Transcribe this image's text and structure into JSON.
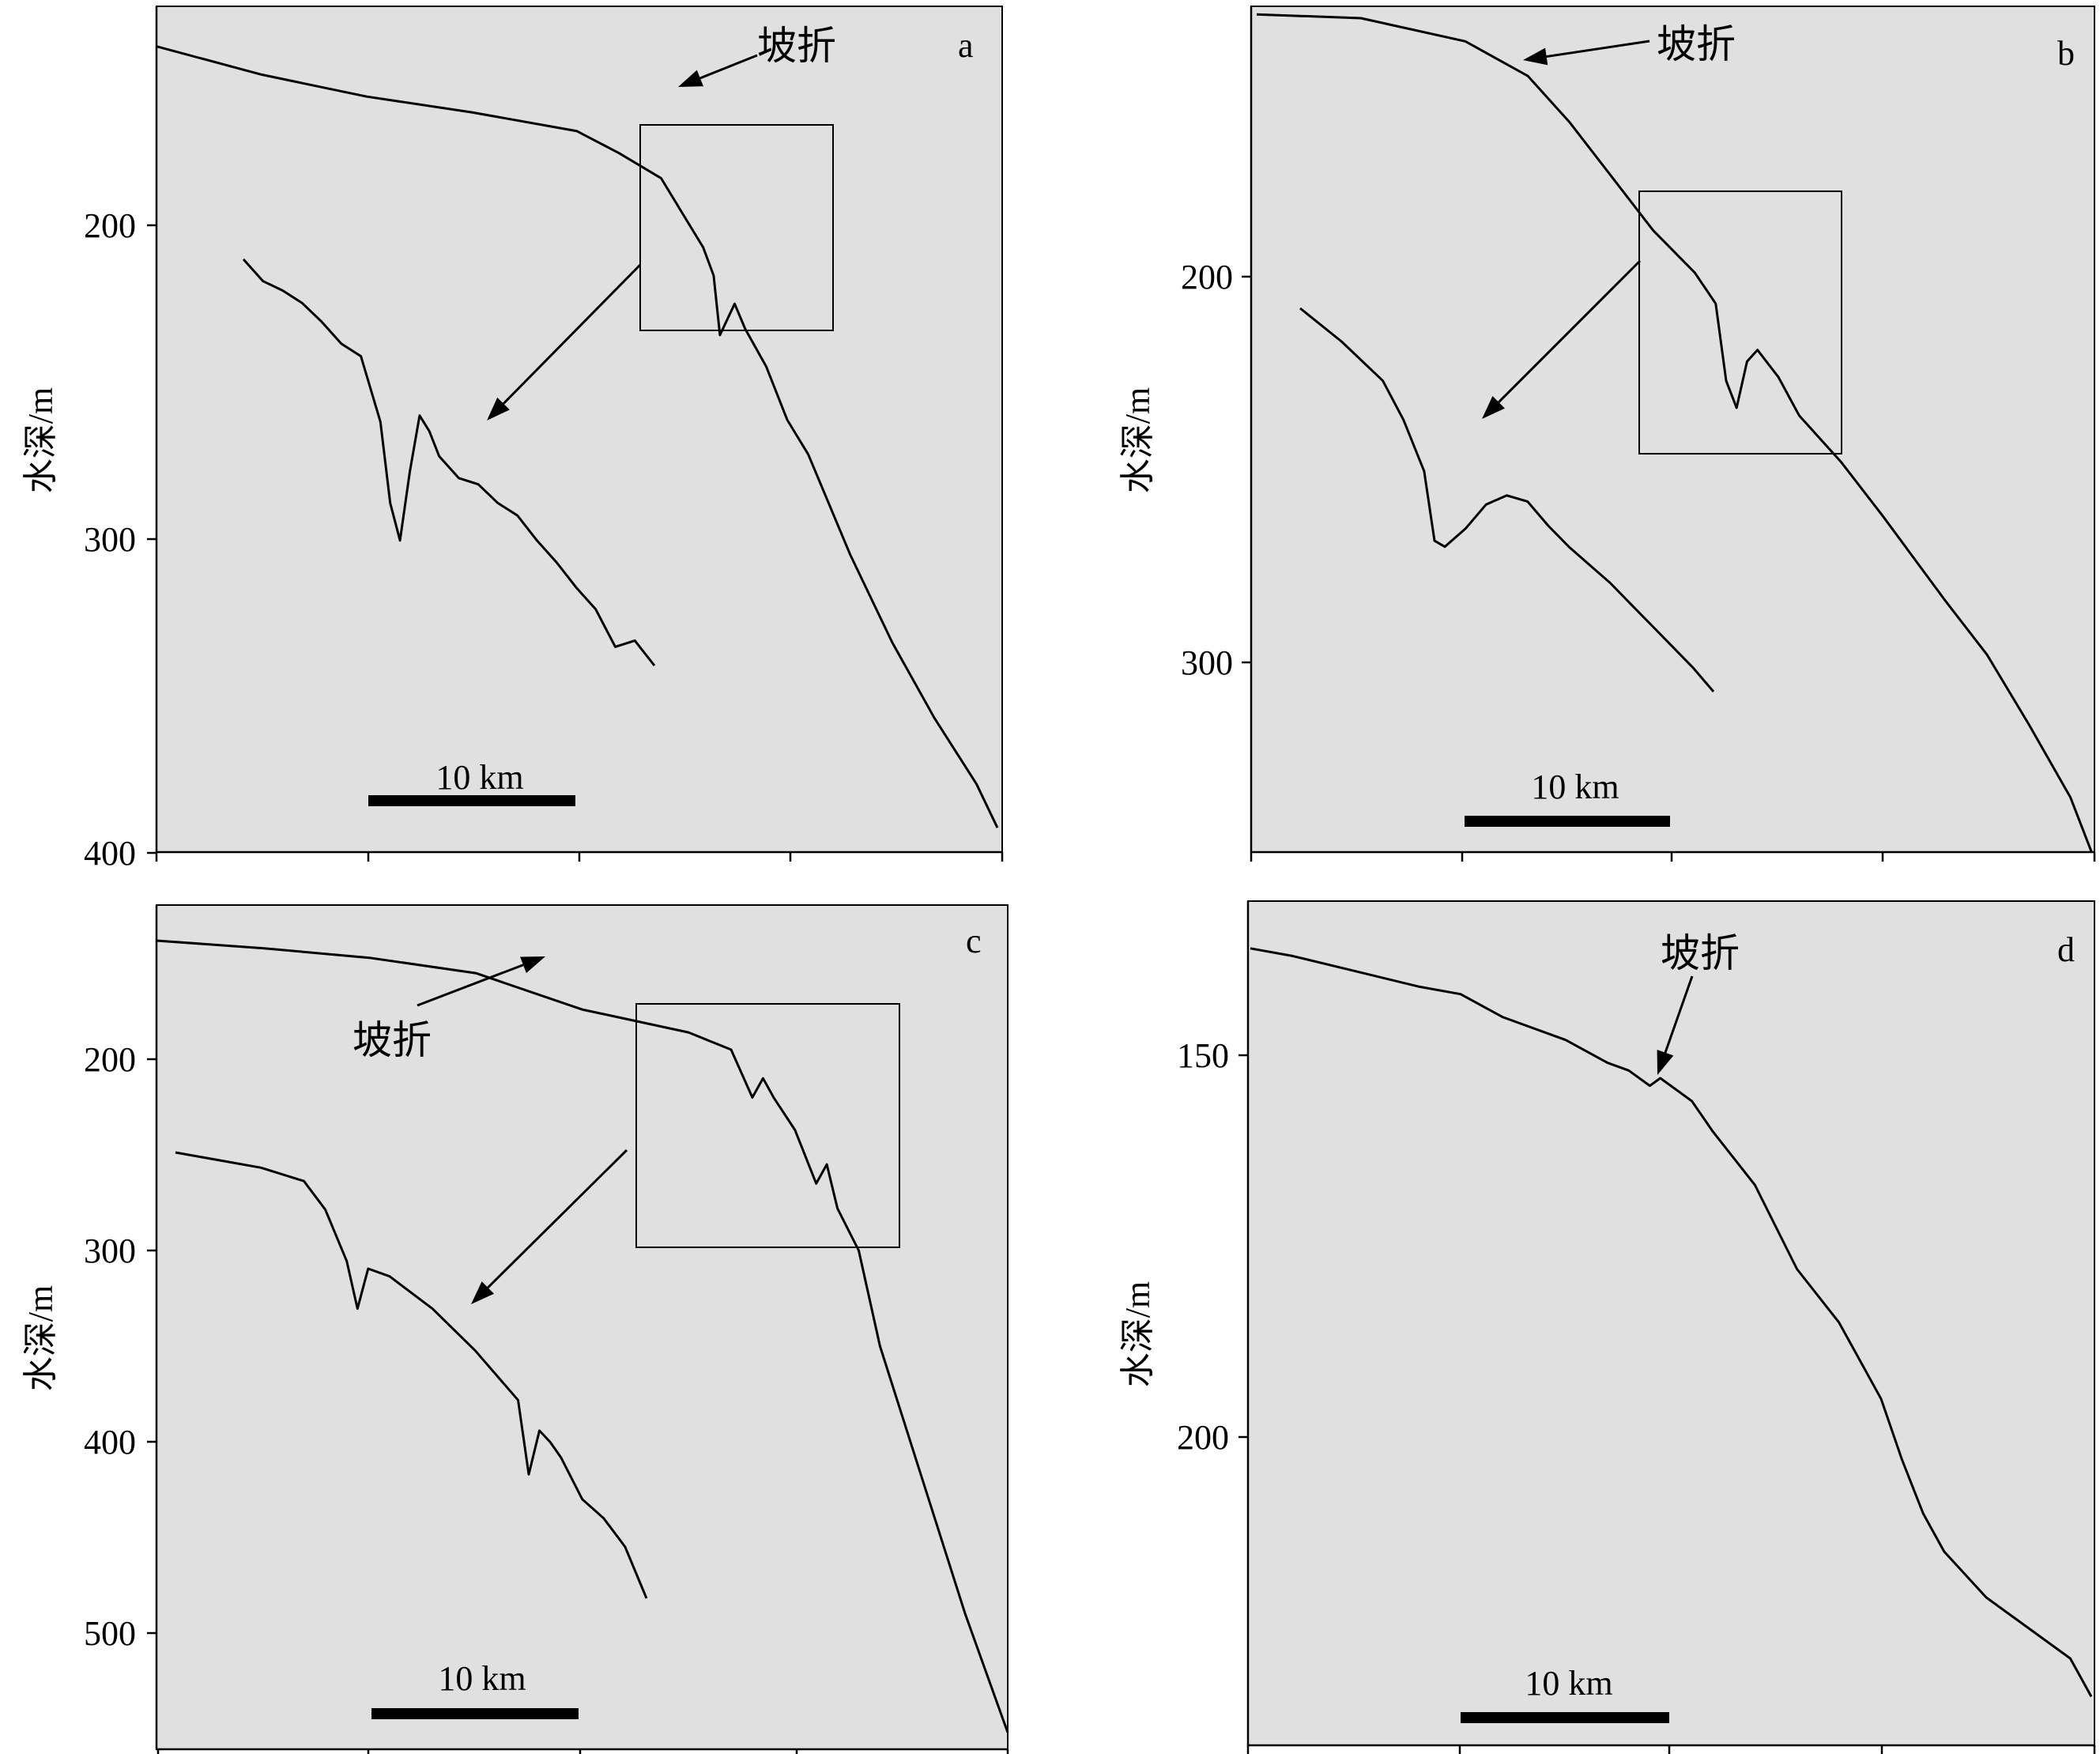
{
  "chart_data": [
    {
      "panel": "a",
      "type": "line",
      "ylabel": "水深/m",
      "yticks": [
        "200",
        "300",
        "400"
      ],
      "ylim": [
        400,
        143
      ],
      "y_inverted": true,
      "scale_bar": "10 km",
      "annotation": "坡折",
      "series": [
        {
          "x": [
            0,
            5,
            10,
            15,
            20,
            22,
            24,
            25,
            26,
            26.5,
            26.8,
            27.5,
            28,
            29,
            30,
            31,
            33,
            35,
            37,
            39,
            40
          ],
          "y": [
            143,
            152,
            159,
            164,
            170,
            177,
            185,
            196,
            207,
            216,
            235,
            225,
            233,
            245,
            262,
            273,
            305,
            333,
            357,
            378,
            392
          ]
        }
      ],
      "inset_series": [
        {
          "x": [
            0,
            1,
            2,
            3,
            4,
            5,
            6,
            7,
            7.5,
            8,
            8.5,
            9,
            9.5,
            10,
            11,
            12,
            13,
            14,
            15,
            16,
            17,
            18,
            19,
            20,
            21
          ],
          "y": [
            210,
            217,
            220,
            224,
            230,
            237,
            241,
            262,
            288,
            300,
            278,
            260,
            265,
            273,
            280,
            282,
            288,
            292,
            300,
            307,
            315,
            322,
            334,
            332,
            340
          ]
        }
      ]
    },
    {
      "panel": "b",
      "type": "line",
      "ylabel": "水深/m",
      "yticks": [
        "200",
        "300"
      ],
      "ylim": [
        349,
        127
      ],
      "y_inverted": true,
      "scale_bar": "10 km",
      "annotation": "坡折",
      "series": [
        {
          "x": [
            0,
            5,
            10,
            13,
            15,
            17,
            19,
            21,
            22,
            22.5,
            23,
            23.5,
            24,
            25,
            26,
            28,
            30,
            33,
            35,
            37,
            39,
            40
          ],
          "y": [
            132,
            133,
            139,
            148,
            160,
            174,
            188,
            199,
            207,
            227,
            234,
            222,
            219,
            226,
            236,
            248,
            262,
            284,
            298,
            316,
            335,
            349
          ]
        }
      ],
      "inset_series": [
        {
          "x": [
            0,
            2,
            4,
            5,
            6,
            6.5,
            7,
            8,
            9,
            10,
            11,
            12,
            13,
            14,
            15,
            16,
            17,
            18,
            19,
            20
          ],
          "y": [
            208,
            219,
            232,
            245,
            262,
            285,
            287,
            281,
            273,
            270,
            272,
            280,
            287,
            293,
            299,
            306,
            313,
            320,
            327,
            335
          ]
        }
      ]
    },
    {
      "panel": "c",
      "type": "line",
      "ylabel": "水深/m",
      "yticks": [
        "200",
        "300",
        "400",
        "500"
      ],
      "ylim": [
        549,
        135
      ],
      "y_inverted": true,
      "scale_bar": "10 km",
      "annotation": "坡折",
      "series": [
        {
          "x": [
            0,
            5,
            10,
            15,
            20,
            25,
            27,
            28,
            28.5,
            29,
            30,
            31,
            31.5,
            32,
            33,
            34,
            36,
            38,
            40
          ],
          "y": [
            138,
            142,
            147,
            155,
            174,
            186,
            195,
            220,
            210,
            220,
            237,
            265,
            255,
            278,
            300,
            350,
            420,
            490,
            552
          ]
        }
      ],
      "inset_series": [
        {
          "x": [
            0,
            2,
            4,
            6,
            7,
            8,
            8.5,
            9,
            10,
            12,
            14,
            16,
            16.5,
            17,
            17.5,
            18,
            19,
            20,
            21,
            22
          ],
          "y": [
            248,
            252,
            256,
            263,
            278,
            305,
            330,
            309,
            313,
            330,
            352,
            378,
            417,
            394,
            400,
            408,
            430,
            440,
            455,
            482
          ]
        }
      ]
    },
    {
      "panel": "d",
      "type": "line",
      "ylabel": "水深/m",
      "yticks": [
        "150",
        "200"
      ],
      "ylim": [
        237,
        130
      ],
      "y_inverted": true,
      "scale_bar": "10 km",
      "annotation": "坡折",
      "series": [
        {
          "x": [
            0,
            2,
            5,
            8,
            10,
            12,
            15,
            17,
            18,
            19,
            19.5,
            20,
            21,
            22,
            24,
            26,
            28,
            30,
            31,
            32,
            33,
            35,
            37,
            39,
            40
          ],
          "y": [
            136,
            137,
            139,
            141,
            142,
            145,
            148,
            151,
            152,
            154,
            153,
            154,
            156,
            160,
            167,
            178,
            185,
            195,
            203,
            210,
            215,
            221,
            225,
            229,
            234
          ]
        }
      ]
    }
  ]
}
